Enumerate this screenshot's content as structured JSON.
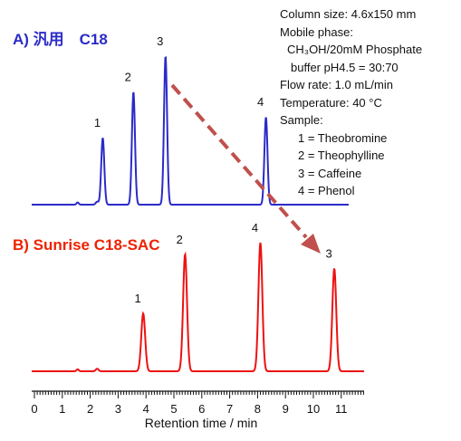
{
  "conditions": {
    "column_size": "Column size: 4.6x150 mm",
    "mobile_phase_label": "Mobile phase:",
    "mobile_phase_line1": "CH₃OH/20mM Phosphate",
    "mobile_phase_line2": "buffer pH4.5 = 30:70",
    "flow_rate": "Flow rate: 1.0 mL/min",
    "temperature": "Temperature: 40 °C",
    "sample_label": "Sample:",
    "samples": [
      "1 = Theobromine",
      "2 = Theophylline",
      "3 = Caffeine",
      "4 = Phenol"
    ]
  },
  "chart_data": [
    {
      "type": "line",
      "title": "A) 汎用　C18",
      "color": "#2b2bc8",
      "xlabel": "Retention time  / min",
      "xlim": [
        0,
        11.8
      ],
      "peaks": [
        {
          "label": "1",
          "x": 2.45,
          "height": 0.45
        },
        {
          "label": "2",
          "x": 3.55,
          "height": 0.76
        },
        {
          "label": "3",
          "x": 4.7,
          "height": 1.0
        },
        {
          "label": "4",
          "x": 8.3,
          "height": 0.59
        }
      ]
    },
    {
      "type": "line",
      "title": "B) Sunrise C18-SAC",
      "color": "#ee1111",
      "xlabel": "Retention time  / min",
      "xlim": [
        0,
        11.8
      ],
      "peaks": [
        {
          "label": "1",
          "x": 3.9,
          "height": 0.45
        },
        {
          "label": "2",
          "x": 5.4,
          "height": 0.91
        },
        {
          "label": "4",
          "x": 8.1,
          "height": 1.0
        },
        {
          "label": "3",
          "x": 10.75,
          "height": 0.8
        }
      ]
    }
  ],
  "axis": {
    "ticks": [
      "0",
      "1",
      "2",
      "3",
      "4",
      "5",
      "6",
      "7",
      "8",
      "9",
      "10",
      "11"
    ],
    "xlabel": "Retention time  / min"
  },
  "arrow_color": "#c0504d"
}
